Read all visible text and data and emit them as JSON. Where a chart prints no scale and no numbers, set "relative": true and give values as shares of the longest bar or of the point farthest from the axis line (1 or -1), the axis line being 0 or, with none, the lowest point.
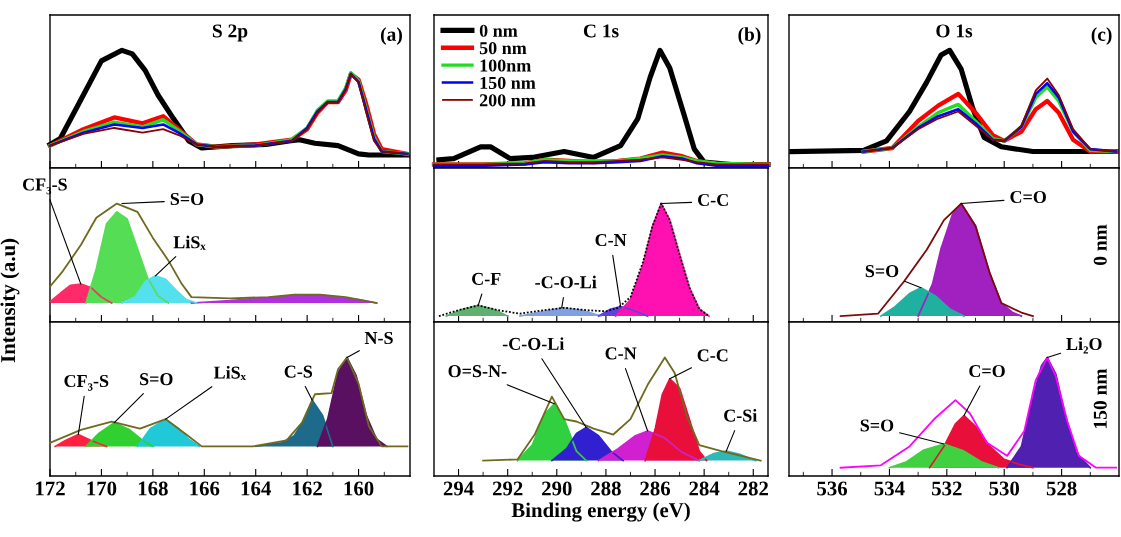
{
  "chart_data": [
    {
      "type": "line",
      "relative": true,
      "title": "S 2p",
      "annotations": [
        "(a)"
      ],
      "tick_labels": false,
      "xlim": [
        172,
        158
      ],
      "xticks": [
        172,
        {
          "value": 171,
          "label": null
        },
        170,
        {
          "value": 169,
          "label": null
        },
        168,
        {
          "value": 167,
          "label": null
        },
        166,
        {
          "value": 165,
          "label": null
        },
        164,
        {
          "value": 163,
          "label": null
        },
        162,
        {
          "value": 161,
          "label": null
        },
        160,
        {
          "value": 159,
          "label": null
        }
      ],
      "series": [
        {
          "color": "#000000",
          "x": [
            172,
            171.6,
            170.8,
            170,
            169.2,
            168.8,
            168.3,
            167.8,
            167.2,
            166.6,
            166.1,
            164.9,
            163.6,
            162.7,
            162.3,
            161.7,
            160.8,
            160,
            159.6,
            158.1
          ],
          "values": [
            0.2,
            0.25,
            0.58,
            0.91,
            1,
            0.97,
            0.83,
            0.62,
            0.42,
            0.23,
            0.17,
            0.19,
            0.2,
            0.23,
            0.24,
            0.21,
            0.19,
            0.12,
            0.11,
            0.11
          ]
        },
        {
          "color": "#ff0000",
          "x": [
            172,
            170.7,
            169.5,
            168.4,
            167.6,
            167,
            166.3,
            165.5,
            164,
            162.6,
            162,
            161.6,
            161.2,
            160.8,
            160.5,
            160.3,
            160,
            159.7,
            159.4,
            159.1,
            158.1
          ],
          "values": [
            0.19,
            0.33,
            0.43,
            0.38,
            0.44,
            0.33,
            0.2,
            0.18,
            0.2,
            0.24,
            0.33,
            0.47,
            0.56,
            0.56,
            0.66,
            0.8,
            0.75,
            0.54,
            0.29,
            0.16,
            0.12
          ]
        },
        {
          "color": "#22dd22",
          "x": [
            172,
            170.7,
            169.5,
            168.4,
            167.6,
            167,
            166.3,
            165.5,
            164,
            162.6,
            162,
            161.6,
            161.2,
            160.8,
            160.5,
            160.3,
            160,
            159.7,
            159.4,
            159.1,
            158.1
          ],
          "values": [
            0.19,
            0.31,
            0.39,
            0.35,
            0.41,
            0.32,
            0.2,
            0.18,
            0.19,
            0.24,
            0.34,
            0.49,
            0.57,
            0.57,
            0.68,
            0.81,
            0.74,
            0.5,
            0.26,
            0.14,
            0.12
          ]
        },
        {
          "color": "#0000ff",
          "x": [
            172,
            170.7,
            169.5,
            168.4,
            167.6,
            167,
            166.3,
            165.5,
            164,
            162.6,
            162,
            161.6,
            161.2,
            160.8,
            160.5,
            160.3,
            160,
            159.7,
            159.4,
            159.1,
            158.1
          ],
          "values": [
            0.19,
            0.3,
            0.37,
            0.34,
            0.37,
            0.3,
            0.2,
            0.18,
            0.19,
            0.23,
            0.34,
            0.48,
            0.56,
            0.56,
            0.67,
            0.8,
            0.73,
            0.49,
            0.25,
            0.14,
            0.12
          ]
        },
        {
          "color": "#8b0000",
          "x": [
            172,
            170.7,
            169.5,
            168.4,
            167.6,
            167,
            166.3,
            165.5,
            164,
            162.6,
            162,
            161.6,
            161.2,
            160.8,
            160.5,
            160.3,
            160,
            159.7,
            159.4,
            159.1,
            158.1
          ],
          "values": [
            0.19,
            0.29,
            0.34,
            0.3,
            0.33,
            0.28,
            0.2,
            0.18,
            0.19,
            0.23,
            0.33,
            0.47,
            0.56,
            0.56,
            0.67,
            0.8,
            0.73,
            0.47,
            0.23,
            0.14,
            0.12
          ]
        }
      ]
    },
    {
      "type": "line",
      "relative": true,
      "title": "C 1s",
      "annotations": [
        "(b)"
      ],
      "tick_labels": false,
      "legend": "top left",
      "xlim": [
        295,
        281.4
      ],
      "xticks": [
        294,
        {
          "value": 293,
          "label": null
        },
        292,
        {
          "value": 291,
          "label": null
        },
        290,
        {
          "value": 289,
          "label": null
        },
        288,
        {
          "value": 287,
          "label": null
        },
        286,
        {
          "value": 285,
          "label": null
        },
        284,
        {
          "value": 283,
          "label": null
        },
        282
      ],
      "series": [
        {
          "name": "0 nm",
          "color": "#000000",
          "x": [
            294.8,
            294.2,
            293.1,
            292.7,
            291.9,
            291,
            289.7,
            288.5,
            287.4,
            286.7,
            286.2,
            285.8,
            285.4,
            284.8,
            284.4,
            284,
            282.9,
            281.4
          ],
          "values": [
            0.07,
            0.08,
            0.18,
            0.18,
            0.08,
            0.09,
            0.14,
            0.09,
            0.19,
            0.42,
            0.77,
            1,
            0.85,
            0.44,
            0.16,
            0.05,
            0.03,
            0.03
          ]
        },
        {
          "name": "50 nm",
          "color": "#ff0000",
          "x": [
            295,
            293,
            291.3,
            290.5,
            289.5,
            288.5,
            287.5,
            286.6,
            285.7,
            284.9,
            284.3,
            283.5,
            281.4
          ],
          "values": [
            0.03,
            0.03,
            0.04,
            0.07,
            0.06,
            0.05,
            0.06,
            0.08,
            0.13,
            0.1,
            0.06,
            0.03,
            0.03
          ]
        },
        {
          "name": "100nm",
          "color": "#22dd22",
          "x": [
            295,
            293,
            291.3,
            290.5,
            289.5,
            288.5,
            287.5,
            286.6,
            285.7,
            284.9,
            284.3,
            283.5,
            281.4
          ],
          "values": [
            0.03,
            0.03,
            0.04,
            0.07,
            0.06,
            0.06,
            0.06,
            0.08,
            0.11,
            0.09,
            0.06,
            0.04,
            0.03
          ]
        },
        {
          "name": "150 nm",
          "color": "#0000ff",
          "x": [
            295,
            293,
            291.3,
            290.5,
            289.5,
            288.5,
            287.5,
            286.6,
            285.7,
            284.9,
            284.3,
            283.5,
            281.4
          ],
          "values": [
            0.02,
            0.02,
            0.03,
            0.05,
            0.04,
            0.04,
            0.05,
            0.06,
            0.1,
            0.08,
            0.04,
            0.02,
            0.02
          ]
        },
        {
          "name": "200 nm",
          "color": "#8b0000",
          "x": [
            295,
            293,
            291.3,
            290.5,
            289.5,
            288.5,
            287.5,
            286.6,
            285.7,
            284.9,
            284.3,
            283.5,
            281.4
          ],
          "values": [
            0.03,
            0.03,
            0.04,
            0.06,
            0.05,
            0.05,
            0.06,
            0.07,
            0.09,
            0.07,
            0.05,
            0.03,
            0.03
          ]
        }
      ]
    },
    {
      "type": "line",
      "relative": true,
      "title": "O 1s",
      "annotations": [
        "(c)"
      ],
      "tick_labels": false,
      "xlim": [
        537.5,
        526
      ],
      "xticks": [
        {
          "value": 537,
          "label": null
        },
        536,
        {
          "value": 535,
          "label": null
        },
        534,
        {
          "value": 533,
          "label": null
        },
        532,
        {
          "value": 531,
          "label": null
        },
        530,
        {
          "value": 529,
          "label": null
        },
        528,
        {
          "value": 527,
          "label": null
        }
      ],
      "series": [
        {
          "color": "#000000",
          "x": [
            537.4,
            534.9,
            534.1,
            533.3,
            532.7,
            532.2,
            531.9,
            531.5,
            531.1,
            530.7,
            530.1,
            529,
            526.1
          ],
          "values": [
            0.14,
            0.15,
            0.23,
            0.48,
            0.73,
            0.96,
            1,
            0.84,
            0.51,
            0.26,
            0.18,
            0.14,
            0.14
          ]
        },
        {
          "color": "#ff0000",
          "x": [
            534.9,
            533.9,
            533,
            532.3,
            531.6,
            531,
            530.4,
            530,
            529.4,
            528.9,
            528.5,
            528.1,
            527.6,
            527,
            526.1
          ],
          "values": [
            0.14,
            0.17,
            0.4,
            0.53,
            0.63,
            0.47,
            0.28,
            0.23,
            0.31,
            0.5,
            0.57,
            0.47,
            0.24,
            0.14,
            0.14
          ]
        },
        {
          "color": "#22dd22",
          "x": [
            534.9,
            533.9,
            533,
            532.3,
            531.6,
            531,
            530.4,
            530,
            529.4,
            528.9,
            528.5,
            528.1,
            527.6,
            527,
            526.1
          ],
          "values": [
            0.14,
            0.17,
            0.35,
            0.47,
            0.54,
            0.4,
            0.25,
            0.23,
            0.35,
            0.6,
            0.69,
            0.57,
            0.31,
            0.15,
            0.14
          ]
        },
        {
          "color": "#0000ff",
          "x": [
            534.9,
            533.9,
            533,
            532.3,
            531.6,
            531,
            530.4,
            530,
            529.4,
            528.9,
            528.5,
            528.1,
            527.6,
            527,
            526.1
          ],
          "values": [
            0.14,
            0.17,
            0.34,
            0.44,
            0.5,
            0.38,
            0.24,
            0.23,
            0.35,
            0.63,
            0.72,
            0.6,
            0.31,
            0.16,
            0.14
          ]
        },
        {
          "color": "#8b0000",
          "x": [
            534.9,
            533.9,
            533,
            532.3,
            531.6,
            531,
            530.4,
            530,
            529.4,
            528.9,
            528.5,
            528.1,
            527.6,
            527,
            526.1
          ],
          "values": [
            0.14,
            0.17,
            0.33,
            0.42,
            0.48,
            0.36,
            0.24,
            0.23,
            0.36,
            0.66,
            0.76,
            0.62,
            0.33,
            0.16,
            0.14
          ]
        }
      ]
    },
    {
      "type": "area",
      "relative": true,
      "ylabel": "Intensity (a.u)",
      "tick_labels": false,
      "xlim": [
        172,
        158
      ],
      "xticks": [
        172,
        {
          "value": 171,
          "label": null
        },
        170,
        {
          "value": 169,
          "label": null
        },
        168,
        {
          "value": 167,
          "label": null
        },
        166,
        {
          "value": 165,
          "label": null
        },
        164,
        {
          "value": 163,
          "label": null
        },
        162,
        {
          "value": 161,
          "label": null
        },
        160,
        {
          "value": 159,
          "label": null
        }
      ],
      "annotations": [
        {
          "text": "CF₃-S",
          "x": 170.8,
          "y": 0.32
        },
        {
          "text": "S=O",
          "x": 169.2,
          "y": 1
        },
        {
          "text": "LiSₓ",
          "x": 167.9,
          "y": 0.39
        }
      ],
      "series": [
        {
          "color": "#b030e0",
          "x": [
            166.5,
            165,
            164,
            163,
            162,
            161.5,
            161,
            160,
            159.3
          ],
          "values": [
            0.16,
            0.18,
            0.2,
            0.21,
            0.23,
            0.23,
            0.21,
            0.19,
            0.16
          ]
        },
        {
          "color": "#ff2a6a",
          "x": [
            172,
            171.5,
            171.2,
            170.8,
            170.4,
            170,
            169.6
          ],
          "values": [
            0.17,
            0.26,
            0.31,
            0.32,
            0.29,
            0.21,
            0.16
          ]
        },
        {
          "color": "#55dd55",
          "x": [
            170.6,
            170.2,
            169.8,
            169.4,
            169,
            168.6,
            168.2,
            167.8,
            167.4
          ],
          "values": [
            0.16,
            0.45,
            0.83,
            0.93,
            0.87,
            0.62,
            0.37,
            0.22,
            0.16
          ]
        },
        {
          "color": "#55e0ee",
          "x": [
            169.2,
            168.7,
            168.3,
            167.9,
            167.5,
            167.1,
            166.7,
            166.3
          ],
          "values": [
            0.16,
            0.21,
            0.34,
            0.39,
            0.36,
            0.27,
            0.19,
            0.16
          ]
        },
        {
          "type": "line",
          "color": "#6e6a1e",
          "x": [
            172,
            171.5,
            170.8,
            170.2,
            169.4,
            168.6,
            168,
            167.4,
            166.9,
            166.5,
            165,
            163.5,
            162.5,
            161.5,
            160.5,
            159.3
          ],
          "values": [
            0.3,
            0.43,
            0.65,
            0.88,
            1,
            0.93,
            0.71,
            0.52,
            0.33,
            0.21,
            0.2,
            0.21,
            0.23,
            0.23,
            0.21,
            0.16
          ]
        }
      ]
    },
    {
      "type": "area",
      "relative": true,
      "tick_labels": false,
      "xlim": [
        295,
        281.4
      ],
      "xticks": [
        294,
        {
          "value": 293,
          "label": null
        },
        292,
        {
          "value": 291,
          "label": null
        },
        290,
        {
          "value": 289,
          "label": null
        },
        288,
        {
          "value": 287,
          "label": null
        },
        286,
        {
          "value": 285,
          "label": null
        },
        284,
        {
          "value": 283,
          "label": null
        },
        282
      ],
      "annotations": [
        {
          "text": "C-F",
          "x": 293.2,
          "y": 0.14
        },
        {
          "text": "-C-O-Li",
          "x": 289.8,
          "y": 0.12
        },
        {
          "text": "C-N",
          "x": 287.4,
          "y": 0.13
        },
        {
          "text": "C-C",
          "x": 285.75,
          "y": 1
        }
      ],
      "series": [
        {
          "color": "#60b070",
          "x": [
            294.5,
            293.8,
            293.2,
            292.6,
            292
          ],
          "values": [
            0.05,
            0.11,
            0.14,
            0.11,
            0.05
          ]
        },
        {
          "color": "#80a0e0",
          "x": [
            291.5,
            290.5,
            289.8,
            289,
            288.2
          ],
          "values": [
            0.05,
            0.09,
            0.12,
            0.1,
            0.05
          ]
        },
        {
          "color": "#6040e0",
          "x": [
            288.3,
            287.8,
            287.4,
            286.9,
            286.3
          ],
          "values": [
            0.05,
            0.11,
            0.13,
            0.1,
            0.05
          ]
        },
        {
          "color": "#ff10b0",
          "x": [
            287.6,
            287,
            286.5,
            286.1,
            285.75,
            285.4,
            285,
            284.6,
            284.2,
            283.8
          ],
          "values": [
            0.05,
            0.19,
            0.48,
            0.81,
            1,
            0.86,
            0.57,
            0.29,
            0.11,
            0.05
          ]
        },
        {
          "type": "line",
          "line_style": "dotted",
          "color": "#000000",
          "x": [
            294.8,
            294,
            293.2,
            292.4,
            291.5,
            290.5,
            289.7,
            288.8,
            288,
            287.5,
            287,
            286.5,
            286.1,
            285.75,
            285.4,
            285,
            284.6,
            284.2,
            283.8
          ],
          "values": [
            0.05,
            0.1,
            0.14,
            0.1,
            0.07,
            0.1,
            0.12,
            0.1,
            0.09,
            0.12,
            0.21,
            0.5,
            0.81,
            1,
            0.86,
            0.57,
            0.29,
            0.11,
            0.05
          ]
        }
      ]
    },
    {
      "type": "area",
      "relative": true,
      "tick_labels": false,
      "xlim": [
        537.5,
        526
      ],
      "xticks": [
        {
          "value": 537,
          "label": null
        },
        536,
        {
          "value": 535,
          "label": null
        },
        534,
        {
          "value": 533,
          "label": null
        },
        532,
        {
          "value": 531,
          "label": null
        },
        530,
        {
          "value": 529,
          "label": null
        },
        528,
        {
          "value": 527,
          "label": null
        }
      ],
      "annotations": [
        {
          "text": "C=O",
          "x": 531.5,
          "y": 1
        },
        {
          "text": "S=O",
          "x": 532.9,
          "y": 0.29
        },
        "0 nm"
      ],
      "series": [
        {
          "color": "#a020c0",
          "x": [
            533,
            532.5,
            532.2,
            531.8,
            531.5,
            531,
            530.5,
            530.1,
            529.7,
            529.4
          ],
          "values": [
            0.05,
            0.32,
            0.62,
            0.91,
            1,
            0.81,
            0.41,
            0.16,
            0.08,
            0.05
          ]
        },
        {
          "color": "#20b0a0",
          "x": [
            534.3,
            533.8,
            533.3,
            532.9,
            532.4,
            531.9,
            531.4
          ],
          "values": [
            0.05,
            0.13,
            0.24,
            0.29,
            0.22,
            0.11,
            0.05
          ]
        },
        {
          "type": "line",
          "color": "#7a0a0a",
          "x": [
            535.7,
            534.4,
            533.5,
            532.7,
            532.1,
            531.5,
            531,
            530.5,
            530.1,
            529.4,
            529
          ],
          "values": [
            0.05,
            0.07,
            0.34,
            0.61,
            0.86,
            1,
            0.81,
            0.41,
            0.16,
            0.08,
            0.05
          ]
        }
      ]
    },
    {
      "type": "area",
      "relative": true,
      "tick_labels": "x",
      "xlim": [
        172,
        158
      ],
      "xticks": [
        172,
        {
          "value": 171,
          "label": null
        },
        170,
        {
          "value": 169,
          "label": null
        },
        168,
        {
          "value": 167,
          "label": null
        },
        166,
        {
          "value": 165,
          "label": null
        },
        164,
        {
          "value": 163,
          "label": null
        },
        162,
        {
          "value": 161,
          "label": null
        },
        160,
        {
          "value": 159,
          "label": null
        }
      ],
      "annotations": [
        {
          "text": "CF₃-S",
          "x": 170.9,
          "y": 0.35
        },
        {
          "text": "S=O",
          "x": 169.5,
          "y": 0.45
        },
        {
          "text": "LiSₓ",
          "x": 167.5,
          "y": 0.48
        },
        {
          "text": "C-S",
          "x": 161.8,
          "y": 0.64
        },
        {
          "text": "N-S",
          "x": 160.45,
          "y": 1
        }
      ],
      "series": [
        {
          "color": "#ff2040",
          "x": [
            171.8,
            171.4,
            170.9,
            170.4,
            169.8
          ],
          "values": [
            0.25,
            0.3,
            0.35,
            0.3,
            0.25
          ]
        },
        {
          "color": "#30d030",
          "x": [
            170.6,
            170.1,
            169.5,
            168.9,
            168.4,
            168
          ],
          "values": [
            0.25,
            0.36,
            0.45,
            0.39,
            0.3,
            0.25
          ]
        },
        {
          "color": "#20c8d8",
          "x": [
            168.6,
            168.1,
            167.5,
            167,
            166.6,
            166.2
          ],
          "values": [
            0.25,
            0.4,
            0.48,
            0.4,
            0.31,
            0.25
          ]
        },
        {
          "color": "#1e6a8a",
          "x": [
            164,
            163,
            162.5,
            162.1,
            161.8,
            161.4,
            161
          ],
          "values": [
            0.25,
            0.28,
            0.34,
            0.48,
            0.64,
            0.51,
            0.25
          ]
        },
        {
          "color": "#5a1060",
          "x": [
            161.6,
            161.2,
            160.8,
            160.45,
            160.1,
            159.7,
            159.3,
            158.9
          ],
          "values": [
            0.25,
            0.48,
            0.87,
            1,
            0.85,
            0.51,
            0.31,
            0.25
          ]
        },
        {
          "type": "line",
          "color": "#6e6a1e",
          "x": [
            172,
            170.8,
            169.6,
            168.5,
            167.5,
            166.7,
            166.1,
            164.1,
            162.8,
            162.2,
            161.7,
            161.05,
            160.8,
            160.45,
            160,
            159.6,
            159.1,
            158.1
          ],
          "values": [
            0.28,
            0.39,
            0.46,
            0.4,
            0.48,
            0.35,
            0.25,
            0.25,
            0.3,
            0.45,
            0.69,
            0.7,
            0.9,
            1,
            0.78,
            0.42,
            0.25,
            0.25
          ]
        }
      ]
    },
    {
      "type": "area",
      "relative": true,
      "tick_labels": "x",
      "xlabel": "Binding energy (eV)",
      "xlim": [
        295,
        281.4
      ],
      "xticks": [
        294,
        {
          "value": 293,
          "label": null
        },
        292,
        {
          "value": 291,
          "label": null
        },
        290,
        {
          "value": 289,
          "label": null
        },
        288,
        {
          "value": 287,
          "label": null
        },
        286,
        {
          "value": 285,
          "label": null
        },
        284,
        {
          "value": 283,
          "label": null
        },
        282
      ],
      "annotations": [
        {
          "text": "O=S-N-",
          "x": 290.1,
          "y": 0.61
        },
        {
          "text": "-C-O-Li",
          "x": 288.8,
          "y": 0.41
        },
        {
          "text": "C-N",
          "x": 286.3,
          "y": 0.38
        },
        {
          "text": "C-C",
          "x": 285.4,
          "y": 0.82
        },
        {
          "text": "C-Si",
          "x": 283.1,
          "y": 0.21
        }
      ],
      "series": [
        {
          "color": "#30d040",
          "x": [
            291.6,
            291,
            290.5,
            290.1,
            289.7,
            289.2,
            288.8
          ],
          "values": [
            0.13,
            0.26,
            0.52,
            0.61,
            0.48,
            0.21,
            0.13
          ]
        },
        {
          "color": "#3020d0",
          "x": [
            290.2,
            289.6,
            289.2,
            288.8,
            288.3,
            287.8,
            287.3
          ],
          "values": [
            0.13,
            0.23,
            0.36,
            0.41,
            0.34,
            0.21,
            0.13
          ]
        },
        {
          "color": "#d020d0",
          "x": [
            288.3,
            287.5,
            286.8,
            286.3,
            285.6,
            284.9,
            284.2
          ],
          "values": [
            0.13,
            0.23,
            0.34,
            0.38,
            0.32,
            0.2,
            0.13
          ]
        },
        {
          "color": "#e8103a",
          "x": [
            286.4,
            286,
            285.7,
            285.4,
            285,
            284.6,
            284.2,
            283.9
          ],
          "values": [
            0.13,
            0.39,
            0.69,
            0.82,
            0.74,
            0.48,
            0.21,
            0.13
          ]
        },
        {
          "color": "#30b8b8",
          "x": [
            284.2,
            283.6,
            283.1,
            282.5,
            281.9
          ],
          "values": [
            0.13,
            0.19,
            0.21,
            0.18,
            0.13
          ]
        },
        {
          "type": "line",
          "color": "#6e6a1e",
          "x": [
            293,
            291.6,
            290.9,
            290.2,
            289.7,
            289.2,
            288.5,
            287.7,
            287,
            286.3,
            285.6,
            285.2,
            284.7,
            284.2,
            283.3,
            282.7,
            281.7
          ],
          "values": [
            0.13,
            0.14,
            0.35,
            0.67,
            0.48,
            0.46,
            0.4,
            0.35,
            0.48,
            0.77,
            1,
            0.87,
            0.5,
            0.26,
            0.21,
            0.18,
            0.13
          ]
        }
      ]
    },
    {
      "type": "area",
      "relative": true,
      "tick_labels": "x",
      "xlim": [
        537.5,
        526
      ],
      "xticks": [
        {
          "value": 537,
          "label": null
        },
        536,
        {
          "value": 535,
          "label": null
        },
        534,
        {
          "value": 533,
          "label": null
        },
        532,
        {
          "value": 531,
          "label": null
        },
        530,
        {
          "value": 529,
          "label": null
        },
        528,
        {
          "value": 527,
          "label": null
        }
      ],
      "annotations": [
        {
          "text": "Li₂O",
          "x": 528.5,
          "y": 1
        },
        {
          "text": "C=O",
          "x": 531.4,
          "y": 0.51
        },
        {
          "text": "S=O",
          "x": 532.1,
          "y": 0.27
        },
        "150 nm"
      ],
      "series": [
        {
          "color": "#e8103a",
          "x": [
            532.6,
            532.1,
            531.7,
            531.4,
            531,
            530.5,
            530,
            529.5,
            529
          ],
          "values": [
            0.07,
            0.25,
            0.44,
            0.51,
            0.42,
            0.25,
            0.14,
            0.1,
            0.07
          ]
        },
        {
          "color": "#40d040",
          "x": [
            534,
            533.4,
            532.8,
            532.1,
            531.4,
            530.8,
            530.2
          ],
          "values": [
            0.07,
            0.12,
            0.22,
            0.27,
            0.21,
            0.12,
            0.07
          ]
        },
        {
          "color": "#5020b0",
          "x": [
            529.9,
            529.4,
            529,
            528.7,
            528.5,
            528.2,
            527.9,
            527.5,
            527
          ],
          "values": [
            0.07,
            0.25,
            0.67,
            0.93,
            1,
            0.86,
            0.54,
            0.2,
            0.07
          ]
        },
        {
          "type": "line",
          "color": "#ff00ff",
          "x": [
            535.7,
            534.3,
            533.3,
            532.4,
            531.7,
            531.2,
            530.6,
            529.9,
            529.3,
            528.9,
            528.5,
            528.2,
            527.8,
            527.4,
            526.8,
            526.1
          ],
          "values": [
            0.07,
            0.09,
            0.25,
            0.49,
            0.64,
            0.53,
            0.28,
            0.17,
            0.38,
            0.81,
            1,
            0.84,
            0.46,
            0.17,
            0.07,
            0.07
          ]
        }
      ]
    }
  ]
}
